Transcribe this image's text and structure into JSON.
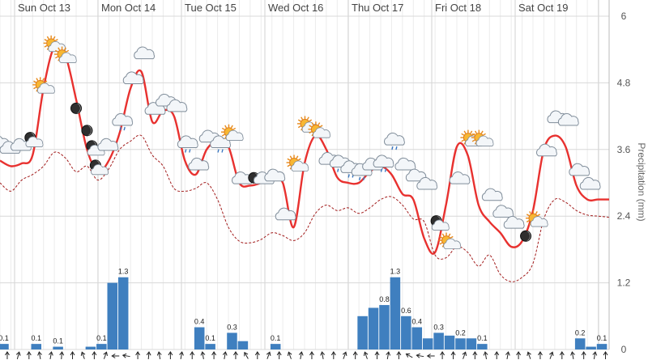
{
  "chart_data": {
    "type": "line+bar",
    "days": [
      "Sun Oct 13",
      "Mon Oct 14",
      "Tue Oct 15",
      "Wed Oct 16",
      "Thu Oct 17",
      "Fri Oct 18",
      "Sat Oct 19"
    ],
    "ylabel_right": "Precipitation (mm)",
    "yticks": [
      "0",
      "1.2",
      "2.4",
      "3.6",
      "4.8",
      "6"
    ],
    "ylim": [
      0,
      6
    ],
    "grid": true,
    "colors": {
      "temperature": "#e8312f",
      "dewpoint": "#a31d1d",
      "precipitation": "#3f7fbf",
      "grid_day": "#d0d0d0",
      "grid_minor": "#ececec",
      "grid_h": "#d8d8d8"
    },
    "series": [
      {
        "key": "temperature",
        "style": "solid",
        "x": [
          0,
          3,
          6,
          9,
          12,
          15,
          18,
          21,
          24,
          27,
          30,
          33,
          36,
          39,
          42,
          45,
          48,
          51,
          54,
          57,
          60,
          63,
          66,
          69,
          72,
          75,
          78,
          81,
          84,
          87,
          90,
          93,
          96,
          99,
          102,
          105,
          108,
          111,
          114,
          117,
          120,
          123,
          126,
          129,
          132,
          135,
          138,
          141,
          144,
          147,
          150,
          153,
          156,
          159,
          162,
          165,
          168
        ],
        "values": [
          3.4,
          3.3,
          3.35,
          3.5,
          4.7,
          5.45,
          5.3,
          4.5,
          3.6,
          3.2,
          3.4,
          3.9,
          4.7,
          5.0,
          4.1,
          4.3,
          4.2,
          3.4,
          3.15,
          3.6,
          3.75,
          3.65,
          3.0,
          2.95,
          3.0,
          3.1,
          3.0,
          2.2,
          3.35,
          3.85,
          3.6,
          3.1,
          3.0,
          3.0,
          3.2,
          3.3,
          3.15,
          2.8,
          2.7,
          2.0,
          1.75,
          2.6,
          3.65,
          3.5,
          2.6,
          2.3,
          2.1,
          1.85,
          1.95,
          2.5,
          3.6,
          3.85,
          3.65,
          2.95,
          2.7,
          2.7,
          2.7
        ]
      },
      {
        "key": "dewpoint",
        "style": "dashed",
        "x": [
          0,
          3,
          6,
          9,
          12,
          15,
          18,
          21,
          24,
          27,
          30,
          33,
          36,
          39,
          42,
          45,
          48,
          51,
          54,
          57,
          60,
          63,
          66,
          69,
          72,
          75,
          78,
          81,
          84,
          87,
          90,
          93,
          96,
          99,
          102,
          105,
          108,
          111,
          114,
          117,
          120,
          123,
          126,
          129,
          132,
          135,
          138,
          141,
          144,
          147,
          150,
          153,
          156,
          159,
          162,
          165,
          168
        ],
        "values": [
          3.0,
          2.85,
          3.05,
          3.15,
          3.3,
          3.55,
          3.45,
          3.2,
          3.3,
          3.05,
          3.25,
          3.6,
          3.75,
          3.85,
          3.5,
          3.3,
          2.9,
          2.85,
          2.9,
          3.0,
          2.7,
          2.2,
          1.95,
          1.92,
          1.98,
          2.1,
          2.05,
          1.96,
          2.1,
          2.45,
          2.6,
          2.5,
          2.55,
          2.45,
          2.55,
          2.7,
          2.75,
          2.6,
          2.35,
          2.3,
          1.7,
          1.65,
          1.85,
          1.75,
          1.5,
          1.7,
          1.35,
          1.22,
          1.3,
          1.55,
          2.35,
          2.7,
          2.65,
          2.5,
          2.42,
          2.4,
          2.38
        ]
      }
    ],
    "precipitation": {
      "x": [
        1,
        4,
        7,
        10,
        13,
        16,
        19,
        22,
        25,
        28,
        31,
        34,
        37,
        40,
        43,
        46,
        49,
        52,
        55,
        58,
        61,
        64,
        67,
        70,
        73,
        76,
        79,
        82,
        85,
        88,
        91,
        94,
        97,
        100,
        103,
        106,
        109,
        112,
        115,
        118,
        121,
        124,
        127,
        130,
        133,
        136,
        139,
        142,
        145,
        148,
        151,
        154,
        157,
        160,
        163,
        166
      ],
      "values": [
        0.1,
        0,
        0,
        0.1,
        0,
        0.05,
        0,
        0,
        0.05,
        0.1,
        1.2,
        1.3,
        0,
        0,
        0,
        0,
        0,
        0,
        0.4,
        0.1,
        0,
        0.3,
        0.15,
        0,
        0,
        0.1,
        0,
        0,
        0,
        0,
        0,
        0,
        0,
        0.6,
        0.75,
        0.8,
        1.3,
        0.6,
        0.4,
        0.2,
        0.3,
        0.25,
        0.2,
        0.2,
        0.1,
        0,
        0,
        0,
        0,
        0,
        0,
        0,
        0,
        0.2,
        0.05,
        0.1
      ],
      "labels": [
        {
          "x": 1,
          "value": 0.1,
          "text": "0.1"
        },
        {
          "x": 10,
          "value": 0.1,
          "text": "0.1"
        },
        {
          "x": 16,
          "value": 0.05,
          "text": "0.1"
        },
        {
          "x": 28,
          "value": 0.1,
          "text": "0.1"
        },
        {
          "x": 34,
          "value": 1.3,
          "text": "1.3"
        },
        {
          "x": 55,
          "value": 0.4,
          "text": "0.4"
        },
        {
          "x": 58,
          "value": 0.1,
          "text": "0.1"
        },
        {
          "x": 64,
          "value": 0.3,
          "text": "0.3"
        },
        {
          "x": 76,
          "value": 0.1,
          "text": "0.1"
        },
        {
          "x": 106,
          "value": 0.8,
          "text": "0.8"
        },
        {
          "x": 109,
          "value": 1.3,
          "text": "1.3"
        },
        {
          "x": 112,
          "value": 0.6,
          "text": "0.6"
        },
        {
          "x": 115,
          "value": 0.4,
          "text": "0.4"
        },
        {
          "x": 121,
          "value": 0.3,
          "text": "0.3"
        },
        {
          "x": 127,
          "value": 0.2,
          "text": "0.2"
        },
        {
          "x": 133,
          "value": 0.1,
          "text": "0.1"
        },
        {
          "x": 160,
          "value": 0.2,
          "text": "0.2"
        },
        {
          "x": 166,
          "value": 0.1,
          "text": "0.1"
        }
      ]
    },
    "weather_icons": [
      {
        "x": 0,
        "value": 3.75,
        "icon": "cloud"
      },
      {
        "x": 3,
        "value": 3.65,
        "icon": "cloud"
      },
      {
        "x": 6,
        "value": 3.7,
        "icon": "cloud"
      },
      {
        "x": 9,
        "value": 3.8,
        "icon": "moon-cloud"
      },
      {
        "x": 12,
        "value": 4.75,
        "icon": "sun-cloud"
      },
      {
        "x": 15,
        "value": 5.5,
        "icon": "sun-cloud"
      },
      {
        "x": 18,
        "value": 5.3,
        "icon": "sun-cloud"
      },
      {
        "x": 21,
        "value": 4.4,
        "icon": "moon"
      },
      {
        "x": 24,
        "value": 4.0,
        "icon": "moon"
      },
      {
        "x": 26,
        "value": 3.65,
        "icon": "moon-cloud"
      },
      {
        "x": 27,
        "value": 3.3,
        "icon": "moon-cloud"
      },
      {
        "x": 30,
        "value": 3.7,
        "icon": "cloud"
      },
      {
        "x": 34,
        "value": 4.15,
        "icon": "rain-cloud"
      },
      {
        "x": 37,
        "value": 4.9,
        "icon": "cloud"
      },
      {
        "x": 40,
        "value": 5.35,
        "icon": "cloud"
      },
      {
        "x": 43,
        "value": 4.35,
        "icon": "cloud"
      },
      {
        "x": 46,
        "value": 4.5,
        "icon": "cloud"
      },
      {
        "x": 49,
        "value": 4.4,
        "icon": "cloud"
      },
      {
        "x": 52,
        "value": 3.75,
        "icon": "rain-cloud"
      },
      {
        "x": 55,
        "value": 3.35,
        "icon": "cloud"
      },
      {
        "x": 58,
        "value": 3.85,
        "icon": "cloud"
      },
      {
        "x": 61,
        "value": 3.75,
        "icon": "rain-cloud"
      },
      {
        "x": 64,
        "value": 3.9,
        "icon": "sun-cloud"
      },
      {
        "x": 67,
        "value": 3.1,
        "icon": "cloud"
      },
      {
        "x": 70,
        "value": 3.15,
        "icon": "moon"
      },
      {
        "x": 73,
        "value": 3.1,
        "icon": "cloud"
      },
      {
        "x": 76,
        "value": 3.15,
        "icon": "cloud"
      },
      {
        "x": 79,
        "value": 2.45,
        "icon": "cloud"
      },
      {
        "x": 82,
        "value": 3.35,
        "icon": "sun-cloud"
      },
      {
        "x": 85,
        "value": 4.05,
        "icon": "sun-cloud"
      },
      {
        "x": 88,
        "value": 3.95,
        "icon": "sun-cloud"
      },
      {
        "x": 91,
        "value": 3.45,
        "icon": "cloud"
      },
      {
        "x": 94,
        "value": 3.4,
        "icon": "rain-cloud"
      },
      {
        "x": 97,
        "value": 3.3,
        "icon": "rain-cloud"
      },
      {
        "x": 100,
        "value": 3.25,
        "icon": "rain-cloud"
      },
      {
        "x": 103,
        "value": 3.35,
        "icon": "cloud"
      },
      {
        "x": 106,
        "value": 3.4,
        "icon": "rain-cloud"
      },
      {
        "x": 109,
        "value": 3.8,
        "icon": "rain-cloud"
      },
      {
        "x": 112,
        "value": 3.35,
        "icon": "cloud"
      },
      {
        "x": 115,
        "value": 3.15,
        "icon": "cloud"
      },
      {
        "x": 118,
        "value": 3.0,
        "icon": "cloud"
      },
      {
        "x": 121,
        "value": 2.3,
        "icon": "moon-cloud"
      },
      {
        "x": 124,
        "value": 1.95,
        "icon": "sun-cloud"
      },
      {
        "x": 127,
        "value": 3.1,
        "icon": "cloud"
      },
      {
        "x": 130,
        "value": 3.8,
        "icon": "sun-cloud"
      },
      {
        "x": 133,
        "value": 3.8,
        "icon": "sun-cloud"
      },
      {
        "x": 136,
        "value": 2.8,
        "icon": "cloud"
      },
      {
        "x": 139,
        "value": 2.5,
        "icon": "cloud"
      },
      {
        "x": 142,
        "value": 2.3,
        "icon": "cloud"
      },
      {
        "x": 145,
        "value": 2.1,
        "icon": "moon"
      },
      {
        "x": 148,
        "value": 2.35,
        "icon": "sun-cloud"
      },
      {
        "x": 151,
        "value": 3.6,
        "icon": "cloud"
      },
      {
        "x": 154,
        "value": 4.2,
        "icon": "cloud"
      },
      {
        "x": 157,
        "value": 4.15,
        "icon": "cloud"
      },
      {
        "x": 160,
        "value": 3.25,
        "icon": "cloud"
      },
      {
        "x": 163,
        "value": 3.0,
        "icon": "cloud"
      }
    ],
    "wind_arrows": [
      {
        "x": 2,
        "dir": 0
      },
      {
        "x": 5,
        "dir": 15
      },
      {
        "x": 8,
        "dir": 0
      },
      {
        "x": 11,
        "dir": 350
      },
      {
        "x": 14,
        "dir": 10
      },
      {
        "x": 17,
        "dir": 5
      },
      {
        "x": 20,
        "dir": 0
      },
      {
        "x": 23,
        "dir": 340
      },
      {
        "x": 26,
        "dir": 0
      },
      {
        "x": 29,
        "dir": 20
      },
      {
        "x": 32,
        "dir": 270
      },
      {
        "x": 35,
        "dir": 280
      },
      {
        "x": 38,
        "dir": 0
      },
      {
        "x": 41,
        "dir": 5
      },
      {
        "x": 44,
        "dir": 350
      },
      {
        "x": 47,
        "dir": 0
      },
      {
        "x": 50,
        "dir": 10
      },
      {
        "x": 53,
        "dir": 0
      },
      {
        "x": 56,
        "dir": 350
      },
      {
        "x": 59,
        "dir": 0
      },
      {
        "x": 62,
        "dir": 10
      },
      {
        "x": 65,
        "dir": 0
      },
      {
        "x": 68,
        "dir": 330
      },
      {
        "x": 71,
        "dir": 0
      },
      {
        "x": 74,
        "dir": 20
      },
      {
        "x": 77,
        "dir": 0
      },
      {
        "x": 80,
        "dir": 340
      },
      {
        "x": 83,
        "dir": 10
      },
      {
        "x": 86,
        "dir": 0
      },
      {
        "x": 89,
        "dir": 350
      },
      {
        "x": 92,
        "dir": 0
      },
      {
        "x": 95,
        "dir": 20
      },
      {
        "x": 98,
        "dir": 0
      },
      {
        "x": 101,
        "dir": 340
      },
      {
        "x": 104,
        "dir": 0
      },
      {
        "x": 107,
        "dir": 10
      },
      {
        "x": 110,
        "dir": 0
      },
      {
        "x": 113,
        "dir": 300
      },
      {
        "x": 116,
        "dir": 280
      },
      {
        "x": 119,
        "dir": 270
      },
      {
        "x": 122,
        "dir": 0
      },
      {
        "x": 125,
        "dir": 0
      },
      {
        "x": 128,
        "dir": 20
      },
      {
        "x": 131,
        "dir": 0
      },
      {
        "x": 134,
        "dir": 350
      },
      {
        "x": 137,
        "dir": 0
      },
      {
        "x": 140,
        "dir": 10
      },
      {
        "x": 143,
        "dir": 0
      },
      {
        "x": 146,
        "dir": 340
      },
      {
        "x": 149,
        "dir": 0
      },
      {
        "x": 152,
        "dir": 20
      },
      {
        "x": 155,
        "dir": 0
      },
      {
        "x": 158,
        "dir": 350
      },
      {
        "x": 161,
        "dir": 0
      },
      {
        "x": 164,
        "dir": 10
      },
      {
        "x": 167,
        "dir": 0
      }
    ]
  }
}
